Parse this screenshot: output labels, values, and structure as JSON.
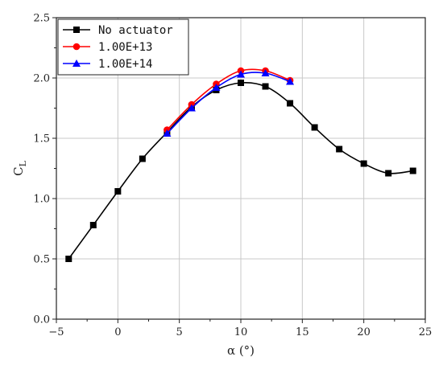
{
  "chart_data": {
    "type": "line",
    "xlabel": "α (°)",
    "ylabel_main": "C",
    "ylabel_sub": "L",
    "xlim": [
      -5,
      25
    ],
    "ylim": [
      0.0,
      2.5
    ],
    "xticks": [
      -5,
      0,
      5,
      10,
      15,
      20,
      25
    ],
    "yticks": [
      0.0,
      0.5,
      1.0,
      1.5,
      2.0,
      2.5
    ],
    "xtick_labels": [
      "−5",
      "0",
      "5",
      "10",
      "15",
      "20",
      "25"
    ],
    "ytick_labels": [
      "0.0",
      "0.5",
      "1.0",
      "1.5",
      "2.0",
      "2.5"
    ],
    "grid": true,
    "legend_position": "top-left",
    "series": [
      {
        "name": "No actuator",
        "color": "#000000",
        "marker": "square",
        "x": [
          -4,
          -2,
          0,
          2,
          4,
          6,
          8,
          10,
          12,
          14,
          16,
          18,
          20,
          22,
          24
        ],
        "y": [
          0.5,
          0.78,
          1.06,
          1.33,
          1.55,
          1.76,
          1.9,
          1.96,
          1.93,
          1.79,
          1.59,
          1.41,
          1.29,
          1.21,
          1.23
        ]
      },
      {
        "name": "1.00E+13",
        "color": "#ff0000",
        "marker": "circle",
        "x": [
          4,
          6,
          8,
          10,
          12,
          14
        ],
        "y": [
          1.57,
          1.78,
          1.95,
          2.06,
          2.06,
          1.98
        ]
      },
      {
        "name": "1.00E+14",
        "color": "#0000ff",
        "marker": "triangle",
        "x": [
          4,
          6,
          8,
          10,
          12,
          14
        ],
        "y": [
          1.54,
          1.75,
          1.92,
          2.03,
          2.04,
          1.97
        ]
      }
    ]
  }
}
